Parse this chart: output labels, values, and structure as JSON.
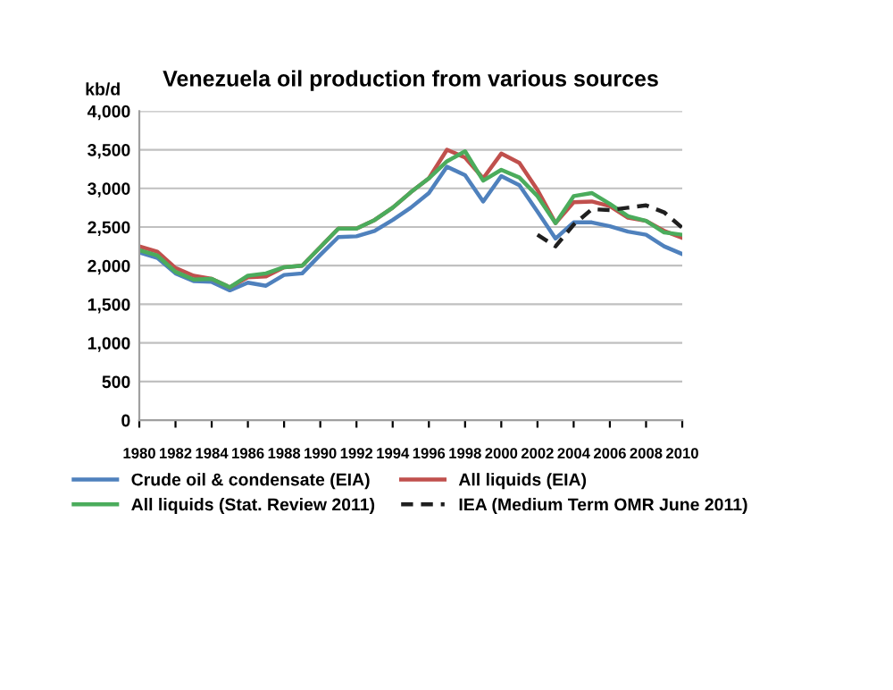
{
  "chart_data": {
    "type": "line",
    "title": "Venezuela oil production from various sources",
    "ylabel": "kb/d",
    "x": [
      1980,
      1981,
      1982,
      1983,
      1984,
      1985,
      1986,
      1987,
      1988,
      1989,
      1990,
      1991,
      1992,
      1993,
      1994,
      1995,
      1996,
      1997,
      1998,
      1999,
      2000,
      2001,
      2002,
      2003,
      2004,
      2005,
      2006,
      2007,
      2008,
      2009,
      2010
    ],
    "series": [
      {
        "name": "Crude oil & condensate (EIA)",
        "color": "#4f81bd",
        "values": [
          2170,
          2100,
          1900,
          1800,
          1790,
          1680,
          1780,
          1740,
          1880,
          1900,
          2140,
          2370,
          2380,
          2450,
          2590,
          2750,
          2940,
          3280,
          3170,
          2830,
          3160,
          3040,
          2700,
          2350,
          2560,
          2560,
          2510,
          2440,
          2400,
          2250,
          2150
        ]
      },
      {
        "name": "All liquids (EIA)",
        "color": "#c0504d",
        "values": [
          2250,
          2180,
          1970,
          1870,
          1830,
          1720,
          1850,
          1860,
          1980,
          2000,
          2240,
          2480,
          2480,
          2590,
          2750,
          2950,
          3130,
          3500,
          3400,
          3130,
          3450,
          3330,
          2980,
          2550,
          2820,
          2830,
          2770,
          2620,
          2580,
          2450,
          2360
        ]
      },
      {
        "name": "All liquids (Stat. Review 2011)",
        "color": "#4bac5c",
        "values": [
          2200,
          2130,
          1920,
          1820,
          1830,
          1720,
          1870,
          1900,
          1980,
          2000,
          2240,
          2480,
          2480,
          2590,
          2750,
          2950,
          3130,
          3350,
          3480,
          3100,
          3240,
          3140,
          2900,
          2550,
          2900,
          2940,
          2800,
          2640,
          2580,
          2430,
          2400
        ]
      },
      {
        "name": "IEA (Medium Term OMR June 2011)",
        "color": "#1f1f1f",
        "line_style": "dashed",
        "x": [
          2002,
          2003,
          2004,
          2005,
          2006,
          2007,
          2008,
          2009,
          2010
        ],
        "values": [
          2400,
          2250,
          2530,
          2730,
          2720,
          2750,
          2780,
          2690,
          2490
        ]
      }
    ],
    "xlim": [
      1980,
      2010
    ],
    "xticks": [
      1980,
      1982,
      1984,
      1986,
      1988,
      1990,
      1992,
      1994,
      1996,
      1998,
      2000,
      2002,
      2004,
      2006,
      2008,
      2010
    ],
    "ylim": [
      0,
      4000
    ],
    "yticks": [
      {
        "value": 0,
        "label": "0"
      },
      {
        "value": 500,
        "label": "500"
      },
      {
        "value": 1000,
        "label": "1,000"
      },
      {
        "value": 1500,
        "label": "1,500"
      },
      {
        "value": 2000,
        "label": "2,000"
      },
      {
        "value": 2500,
        "label": "2,500"
      },
      {
        "value": 3000,
        "label": "3,000"
      },
      {
        "value": 3500,
        "label": "3,500"
      },
      {
        "value": 4000,
        "label": "4,000"
      }
    ],
    "grid": "y",
    "legend": "bottom",
    "line_style": "solid",
    "marker": "none"
  }
}
